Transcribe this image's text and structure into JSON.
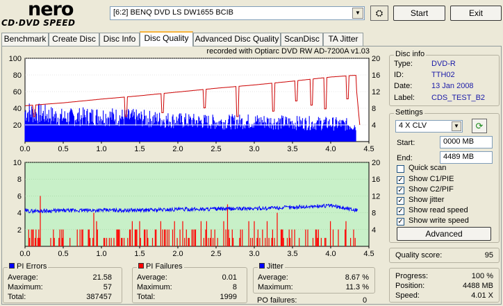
{
  "header": {
    "logo_top": "nero",
    "logo_bottom": "CD·DVD SPEED",
    "drive": "[6:2]  BENQ DVD LS DW1655 BCIB",
    "start_label": "Start",
    "exit_label": "Exit"
  },
  "tabs": [
    {
      "label": "Benchmark"
    },
    {
      "label": "Create Disc"
    },
    {
      "label": "Disc Info"
    },
    {
      "label": "Disc Quality",
      "active": true
    },
    {
      "label": "Advanced Disc Quality"
    },
    {
      "label": "ScanDisc"
    },
    {
      "label": "TA Jitter"
    }
  ],
  "chart_data": [
    {
      "type": "line",
      "title": "recorded with Optiarc DVD RW AD-7200A  v1.03",
      "x_ticks": [
        "0.0",
        "0.5",
        "1.0",
        "1.5",
        "2.0",
        "2.5",
        "3.0",
        "3.5",
        "4.0",
        "4.5"
      ],
      "y_left_ticks": [
        "100",
        "80",
        "60",
        "40",
        "20"
      ],
      "y_right_ticks": [
        "20",
        "16",
        "12",
        "8",
        "4"
      ],
      "xlim": [
        0,
        4.5
      ],
      "ylim_left": [
        0,
        100
      ],
      "ylim_right": [
        0,
        20
      ],
      "series": [
        {
          "name": "PI Errors",
          "color": "#0000ff",
          "x": [
            0.0,
            0.5,
            1.0,
            1.5,
            2.0,
            2.5,
            3.0,
            3.5,
            4.0,
            4.3
          ],
          "values": [
            40,
            32,
            34,
            31,
            28,
            26,
            27,
            25,
            24,
            22
          ]
        },
        {
          "name": "Read speed",
          "color": "#cc0000",
          "x": [
            0.0,
            0.5,
            1.0,
            1.5,
            2.0,
            2.5,
            3.0,
            3.5,
            4.0,
            4.3
          ],
          "values": [
            8.6,
            9.3,
            10.2,
            11.0,
            11.9,
            12.8,
            13.6,
            14.5,
            15.5,
            15.9
          ]
        },
        {
          "name": "Write speed",
          "color": "#808080",
          "x": [
            0.0,
            4.35
          ],
          "values": [
            4,
            4
          ]
        }
      ]
    },
    {
      "type": "bar",
      "x_ticks": [
        "0.0",
        "0.5",
        "1.0",
        "1.5",
        "2.0",
        "2.5",
        "3.0",
        "3.5",
        "4.0",
        "4.5"
      ],
      "y_left_ticks": [
        "10",
        "8",
        "6",
        "4",
        "2"
      ],
      "y_right_ticks": [
        "20",
        "16",
        "12",
        "8",
        "4"
      ],
      "xlim": [
        0,
        4.5
      ],
      "ylim_left": [
        0,
        10
      ],
      "ylim_right": [
        0,
        20
      ],
      "series": [
        {
          "name": "PI Failures",
          "color": "#ff0000",
          "x": [
            0.1,
            0.2,
            0.5,
            0.9,
            1.2,
            1.5,
            1.8,
            2.2,
            2.6,
            2.65,
            3.0,
            3.3,
            3.35,
            3.7,
            4.1,
            4.3
          ],
          "values": [
            2,
            6,
            2,
            4,
            2,
            3,
            2,
            2,
            3,
            5,
            3,
            4,
            2,
            2,
            2,
            2
          ]
        },
        {
          "name": "Jitter",
          "color": "#0000ff",
          "x": [
            0.0,
            0.5,
            1.0,
            1.5,
            2.0,
            2.5,
            3.0,
            3.5,
            4.0,
            4.35
          ],
          "values": [
            8.4,
            8.5,
            8.6,
            8.6,
            8.8,
            8.9,
            9.0,
            9.3,
            9.7,
            8.6
          ]
        }
      ]
    }
  ],
  "disc_info": {
    "title": "Disc info",
    "rows": [
      {
        "label": "Type:",
        "value": "DVD-R"
      },
      {
        "label": "ID:",
        "value": "TTH02"
      },
      {
        "label": "Date:",
        "value": "13 Jan 2008"
      },
      {
        "label": "Label:",
        "value": "CDS_TEST_B2"
      }
    ]
  },
  "settings": {
    "title": "Settings",
    "speed": "4 X CLV",
    "start_label": "Start:",
    "start_value": "0000 MB",
    "end_label": "End:",
    "end_value": "4489 MB",
    "checkboxes": [
      {
        "label": "Quick scan",
        "checked": false
      },
      {
        "label": "Show C1/PIE",
        "checked": true
      },
      {
        "label": "Show C2/PIF",
        "checked": true
      },
      {
        "label": "Show jitter",
        "checked": true
      },
      {
        "label": "Show read speed",
        "checked": true
      },
      {
        "label": "Show write speed",
        "checked": true
      }
    ],
    "advanced_label": "Advanced"
  },
  "quality": {
    "label": "Quality score:",
    "value": "95"
  },
  "pi_errors": {
    "title": "PI Errors",
    "color": "#0000ff",
    "rows": [
      {
        "label": "Average:",
        "value": "21.58"
      },
      {
        "label": "Maximum:",
        "value": "57"
      },
      {
        "label": "Total:",
        "value": "387457"
      }
    ]
  },
  "pi_failures": {
    "title": "PI Failures",
    "color": "#ff0000",
    "rows": [
      {
        "label": "Average:",
        "value": "0.01"
      },
      {
        "label": "Maximum:",
        "value": "8"
      },
      {
        "label": "Total:",
        "value": "1999"
      }
    ]
  },
  "jitter": {
    "title": "Jitter",
    "color": "#0000ff",
    "rows": [
      {
        "label": "Average:",
        "value": "8.67 %"
      },
      {
        "label": "Maximum:",
        "value": "11.3 %"
      }
    ],
    "po_label": "PO failures:",
    "po_value": "0"
  },
  "progress": {
    "rows": [
      {
        "label": "Progress:",
        "value": "100 %"
      },
      {
        "label": "Position:",
        "value": "4488 MB"
      },
      {
        "label": "Speed:",
        "value": "4.01 X"
      }
    ]
  }
}
